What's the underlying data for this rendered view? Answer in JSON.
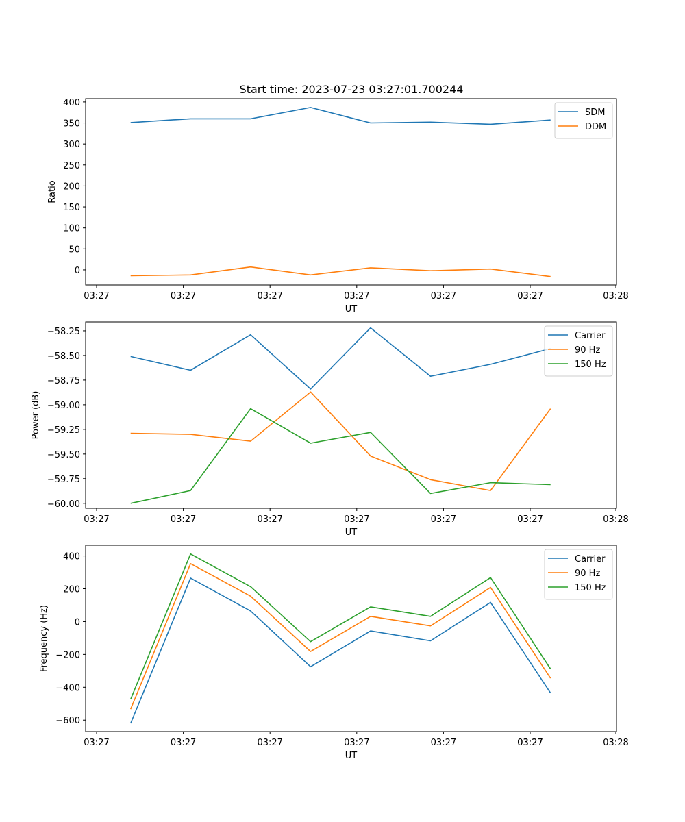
{
  "figure": {
    "title": "Start time: 2023-07-23 03:27:01.700244"
  },
  "chart_data": [
    {
      "type": "line",
      "title": "Start time: 2023-07-23 03:27:01.700244",
      "xlabel": "UT",
      "ylabel": "Ratio",
      "x_tick_labels": [
        "03:27",
        "03:27",
        "03:27",
        "03:27",
        "03:27",
        "03:27",
        "03:27",
        "03:28"
      ],
      "x": [
        1,
        2,
        3,
        4,
        5,
        6,
        7,
        8
      ],
      "xlim": [
        0.25,
        9.1
      ],
      "ylim": [
        -36,
        408
      ],
      "yticks": [
        0,
        50,
        100,
        150,
        200,
        250,
        300,
        350,
        400
      ],
      "y_tick_labels": [
        "0",
        "50",
        "100",
        "150",
        "200",
        "250",
        "300",
        "350",
        "400"
      ],
      "legend_position": "upper right",
      "series": [
        {
          "name": "SDM",
          "color": "#1f77b4",
          "values": [
            351,
            360,
            360,
            387,
            350,
            352,
            347,
            357
          ]
        },
        {
          "name": "DDM",
          "color": "#ff7f0e",
          "values": [
            -14,
            -12,
            7,
            -12,
            5,
            -2,
            2,
            -16
          ]
        }
      ]
    },
    {
      "type": "line",
      "title": "",
      "xlabel": "UT",
      "ylabel": "Power (dB)",
      "x_tick_labels": [
        "03:27",
        "03:27",
        "03:27",
        "03:27",
        "03:27",
        "03:27",
        "03:27",
        "03:28"
      ],
      "x": [
        1,
        2,
        3,
        4,
        5,
        6,
        7,
        8
      ],
      "xlim": [
        0.25,
        9.1
      ],
      "ylim": [
        -60.05,
        -58.16
      ],
      "yticks": [
        -60.0,
        -59.75,
        -59.5,
        -59.25,
        -59.0,
        -58.75,
        -58.5,
        -58.25
      ],
      "y_tick_labels": [
        "−60.00",
        "−59.75",
        "−59.50",
        "−59.25",
        "−59.00",
        "−58.75",
        "−58.50",
        "−58.25"
      ],
      "legend_position": "upper right",
      "series": [
        {
          "name": "Carrier",
          "color": "#1f77b4",
          "values": [
            -58.51,
            -58.65,
            -58.29,
            -58.84,
            -58.22,
            -58.71,
            -58.59,
            -58.43
          ]
        },
        {
          "name": "90 Hz",
          "color": "#ff7f0e",
          "values": [
            -59.29,
            -59.3,
            -59.37,
            -58.87,
            -59.52,
            -59.76,
            -59.87,
            -59.04
          ]
        },
        {
          "name": "150 Hz",
          "color": "#2ca02c",
          "values": [
            -60.0,
            -59.87,
            -59.04,
            -59.39,
            -59.28,
            -59.9,
            -59.79,
            -59.81
          ]
        }
      ]
    },
    {
      "type": "line",
      "title": "",
      "xlabel": "UT",
      "ylabel": "Frequency (Hz)",
      "x_tick_labels": [
        "03:27",
        "03:27",
        "03:27",
        "03:27",
        "03:27",
        "03:27",
        "03:27",
        "03:28"
      ],
      "x": [
        1,
        2,
        3,
        4,
        5,
        6,
        7,
        8
      ],
      "xlim": [
        0.25,
        9.1
      ],
      "ylim": [
        -670,
        465
      ],
      "yticks": [
        -600,
        -400,
        -200,
        0,
        200,
        400
      ],
      "y_tick_labels": [
        "−600",
        "−400",
        "−200",
        "0",
        "200",
        "400"
      ],
      "legend_position": "upper right",
      "series": [
        {
          "name": "Carrier",
          "color": "#1f77b4",
          "values": [
            -620,
            265,
            65,
            -275,
            -57,
            -117,
            117,
            -435
          ]
        },
        {
          "name": "90 Hz",
          "color": "#ff7f0e",
          "values": [
            -533,
            353,
            155,
            -182,
            32,
            -26,
            208,
            -345
          ]
        },
        {
          "name": "150 Hz",
          "color": "#2ca02c",
          "values": [
            -473,
            412,
            213,
            -122,
            90,
            32,
            268,
            -288
          ]
        }
      ]
    }
  ]
}
